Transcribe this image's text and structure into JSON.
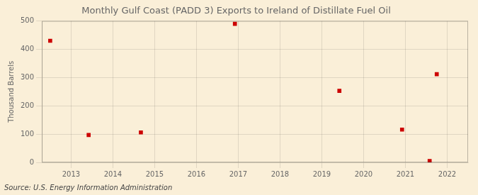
{
  "chart_data": {
    "type": "scatter",
    "title": "Monthly Gulf Coast (PADD 3) Exports to Ireland of Distillate Fuel Oil",
    "ylabel": "Thousand Barrels",
    "annotation": "Source: U.S. Energy Information Administration",
    "x": [
      2012.5,
      2013.42,
      2014.67,
      2016.92,
      2019.42,
      2020.92,
      2021.58,
      2021.75
    ],
    "values": [
      430,
      97,
      106,
      490,
      253,
      116,
      5,
      312
    ],
    "color": "#cc0000",
    "marker": "square",
    "xlim": [
      2012.3,
      2022.5
    ],
    "xticks": [
      2013,
      2014,
      2015,
      2016,
      2017,
      2018,
      2019,
      2020,
      2021,
      2022
    ],
    "ylim": [
      0,
      500
    ],
    "yticks": [
      0,
      100,
      200,
      300,
      400,
      500
    ],
    "grid": true
  }
}
